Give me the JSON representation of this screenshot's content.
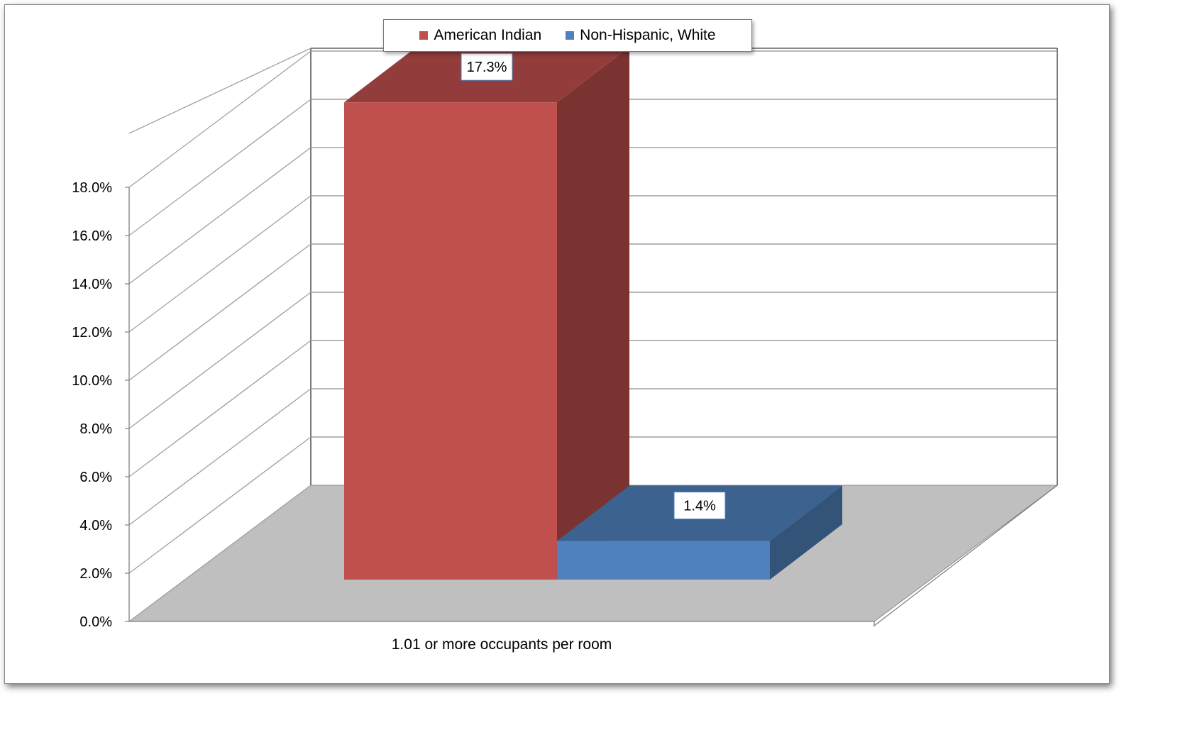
{
  "chart_data": {
    "type": "bar",
    "style": "3d-clustered-column",
    "title": "",
    "xlabel": "",
    "ylabel": "",
    "categories": [
      "1.01 or more occupants per room"
    ],
    "series": [
      {
        "name": "American Indian",
        "values": [
          17.3
        ],
        "value_labels": [
          "17.3%"
        ],
        "color": "#c0504d"
      },
      {
        "name": "Non-Hispanic, White",
        "values": [
          1.4
        ],
        "value_labels": [
          "1.4%"
        ],
        "color": "#4f81bd"
      }
    ],
    "ylim": [
      0,
      18
    ],
    "y_ticks": [
      0,
      2,
      4,
      6,
      8,
      10,
      12,
      14,
      16,
      18
    ],
    "y_tick_labels": [
      "0.0%",
      "2.0%",
      "4.0%",
      "6.0%",
      "8.0%",
      "10.0%",
      "12.0%",
      "14.0%",
      "16.0%",
      "18.0%"
    ],
    "grid": true,
    "legend_position": "top",
    "floor_color": "#bfbfbf"
  }
}
